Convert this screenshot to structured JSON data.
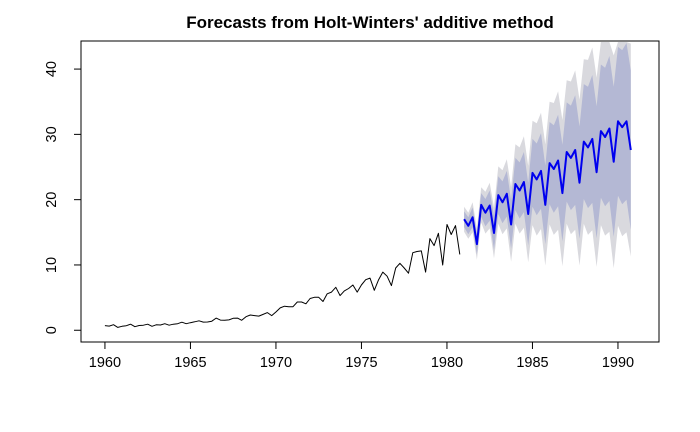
{
  "chart_data": {
    "type": "line",
    "title": "Forecasts from Holt-Winters' additive method",
    "xlabel": "",
    "ylabel": "",
    "xlim": [
      1958.6,
      1992.4
    ],
    "ylim": [
      -1.8,
      44.3
    ],
    "x_ticks": [
      1960,
      1965,
      1970,
      1975,
      1980,
      1985,
      1990
    ],
    "y_ticks": [
      0,
      10,
      20,
      30,
      40
    ],
    "grid": false,
    "legend": "none",
    "colors": {
      "history": "#000000",
      "forecast": "#0000ee",
      "band80": "#b4b8d4",
      "band95": "#d9d9de"
    },
    "history": {
      "x_start": 1960.0,
      "x_step": 0.25,
      "values": [
        0.71,
        0.63,
        0.85,
        0.44,
        0.61,
        0.69,
        0.92,
        0.55,
        0.72,
        0.77,
        0.92,
        0.6,
        0.83,
        0.8,
        1.0,
        0.77,
        0.92,
        1.0,
        1.24,
        1.0,
        1.16,
        1.3,
        1.45,
        1.25,
        1.26,
        1.38,
        1.86,
        1.56,
        1.53,
        1.59,
        1.83,
        1.86,
        1.53,
        2.07,
        2.34,
        2.25,
        2.16,
        2.43,
        2.7,
        2.25,
        2.79,
        3.42,
        3.69,
        3.6,
        3.6,
        4.32,
        4.32,
        4.05,
        4.86,
        5.04,
        5.04,
        4.41,
        5.58,
        5.85,
        6.57,
        5.31,
        6.03,
        6.39,
        6.93,
        5.85,
        6.93,
        7.74,
        7.98,
        6.12,
        7.74,
        8.91,
        8.28,
        6.84,
        9.54,
        10.26,
        9.54,
        8.73,
        11.88,
        12.06,
        12.15,
        8.91,
        14.04,
        12.96,
        14.85,
        9.99,
        16.2,
        14.67,
        16.02,
        11.61
      ]
    },
    "forecast": {
      "x_start": 1981.0,
      "x_step": 0.25,
      "values": [
        17.0,
        16.0,
        17.3,
        13.2,
        19.2,
        18.0,
        19.1,
        14.9,
        20.7,
        19.6,
        20.9,
        16.2,
        22.4,
        21.4,
        22.7,
        17.8,
        24.1,
        23.1,
        24.4,
        19.2,
        25.6,
        24.7,
        26.0,
        21.0,
        27.3,
        26.4,
        27.6,
        22.6,
        28.9,
        28.0,
        29.3,
        24.2,
        30.5,
        29.6,
        30.9,
        25.8,
        32.0,
        31.1,
        32.0,
        27.6
      ],
      "lo80": [
        15.8,
        14.7,
        15.8,
        11.6,
        17.4,
        15.9,
        16.8,
        12.3,
        17.8,
        16.4,
        17.4,
        12.5,
        18.4,
        17.1,
        18.1,
        13.0,
        18.9,
        17.6,
        18.6,
        13.2,
        19.3,
        18.0,
        19.0,
        13.6,
        19.7,
        18.4,
        19.2,
        14.0,
        20.1,
        18.7,
        19.5,
        14.1,
        20.3,
        19.0,
        19.8,
        14.3,
        20.6,
        19.3,
        20.0,
        15.4
      ],
      "hi80": [
        18.2,
        17.3,
        18.8,
        14.8,
        21.0,
        20.1,
        21.4,
        17.5,
        23.6,
        22.8,
        24.4,
        19.9,
        26.4,
        25.7,
        27.3,
        22.6,
        29.3,
        28.6,
        30.2,
        25.2,
        31.9,
        31.4,
        33.0,
        28.4,
        34.9,
        34.4,
        36.0,
        31.2,
        37.7,
        37.3,
        39.1,
        34.3,
        40.7,
        40.2,
        42.0,
        37.3,
        43.4,
        42.9,
        44.0,
        39.8
      ],
      "lo95": [
        15.1,
        14.0,
        15.0,
        10.8,
        16.5,
        14.8,
        15.6,
        11.0,
        16.3,
        14.7,
        15.6,
        10.5,
        16.3,
        14.8,
        15.7,
        10.4,
        16.1,
        14.5,
        15.5,
        9.9,
        16.2,
        14.6,
        15.4,
        9.8,
        16.3,
        14.7,
        15.4,
        9.9,
        16.3,
        14.6,
        15.3,
        9.7,
        16.1,
        14.5,
        15.1,
        9.5,
        16.0,
        14.4,
        15.0,
        11.3
      ],
      "hi95": [
        18.9,
        18.0,
        19.6,
        15.6,
        21.9,
        21.2,
        22.6,
        18.8,
        25.1,
        24.5,
        26.2,
        21.9,
        28.5,
        28.0,
        29.7,
        25.2,
        32.1,
        31.7,
        33.3,
        28.5,
        35.0,
        34.8,
        36.6,
        32.2,
        38.3,
        38.1,
        39.8,
        35.3,
        41.5,
        41.4,
        43.3,
        38.7,
        44.9,
        44.7,
        46.7,
        42.1,
        48.0,
        47.8,
        49.0,
        43.9
      ]
    }
  }
}
